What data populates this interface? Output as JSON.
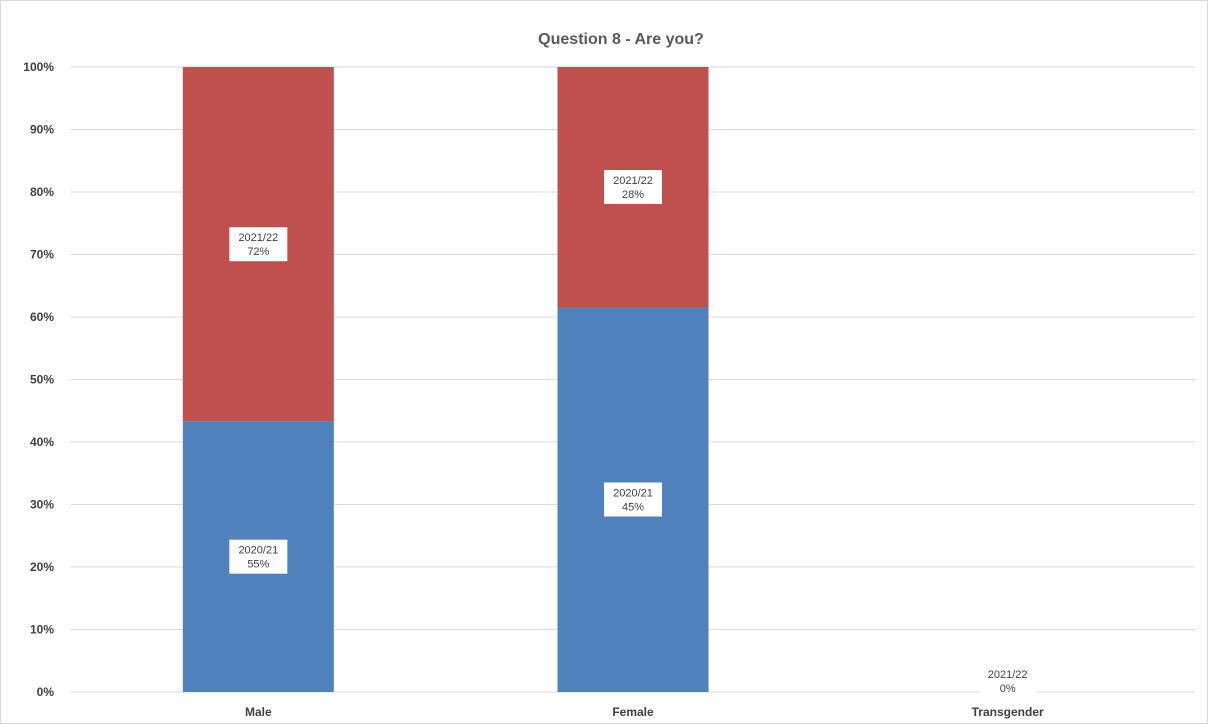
{
  "chart_data": {
    "type": "bar",
    "stacked": true,
    "title": "Question 8 - Are you?",
    "xlabel": "",
    "ylabel": "",
    "ylim": [
      0,
      100
    ],
    "yticks": [
      "0%",
      "10%",
      "20%",
      "30%",
      "40%",
      "50%",
      "60%",
      "70%",
      "80%",
      "90%",
      "100%"
    ],
    "grid": true,
    "legend": "none",
    "categories": [
      "Male",
      "Female",
      "Transgender"
    ],
    "series": [
      {
        "name": "2020/21",
        "color": "#4f81bd",
        "stack_share": [
          43.3,
          61.6,
          0
        ],
        "labels": [
          "55%",
          "45%",
          ""
        ]
      },
      {
        "name": "2021/22",
        "color": "#c0504d",
        "stack_share": [
          56.7,
          38.4,
          0
        ],
        "labels": [
          "72%",
          "28%",
          "0%"
        ]
      }
    ]
  }
}
